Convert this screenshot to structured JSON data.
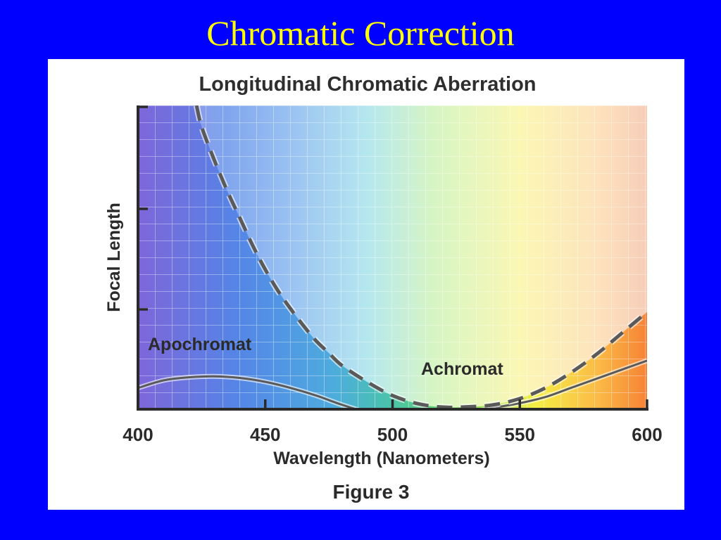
{
  "slide": {
    "title": "Chromatic Correction"
  },
  "chart_data": {
    "type": "line",
    "title": "Longitudinal Chromatic Aberration",
    "xlabel": "Wavelength (Nanometers)",
    "ylabel": "Focal Length",
    "caption": "Figure 3",
    "xlim": [
      400,
      600
    ],
    "ylim": [
      0,
      100
    ],
    "x_ticks": [
      400,
      450,
      500,
      550,
      600
    ],
    "y_ticks_labeled": false,
    "grid": true,
    "background": "visible spectrum gradient (violet to red)",
    "series": [
      {
        "name": "Apochromat",
        "style": "solid",
        "color": "#5a5a5a",
        "x": [
          400,
          410,
          420,
          430,
          440,
          450,
          460,
          470,
          480,
          490,
          500,
          510,
          520,
          530,
          540,
          550,
          560,
          570,
          580,
          590,
          600
        ],
        "y": [
          7,
          9.5,
          10.5,
          10.8,
          10.3,
          9,
          7,
          4.5,
          1.5,
          -1,
          -2.5,
          -2.7,
          -2,
          -1,
          0.5,
          2,
          4,
          7,
          10,
          13,
          16
        ]
      },
      {
        "name": "Achromat",
        "style": "dashed",
        "color": "#5a5a5a",
        "x": [
          423,
          425,
          430,
          435,
          440,
          445,
          450,
          455,
          460,
          465,
          470,
          475,
          480,
          490,
          500,
          510,
          520,
          530,
          540,
          550,
          560,
          570,
          580,
          590,
          600
        ],
        "y": [
          100,
          93,
          82,
          72,
          63,
          54,
          46,
          39,
          33,
          27.5,
          22.5,
          18.5,
          14.5,
          9,
          4.5,
          1.8,
          0.7,
          0.8,
          1.5,
          3.5,
          7,
          12,
          18,
          25,
          32
        ]
      }
    ]
  }
}
